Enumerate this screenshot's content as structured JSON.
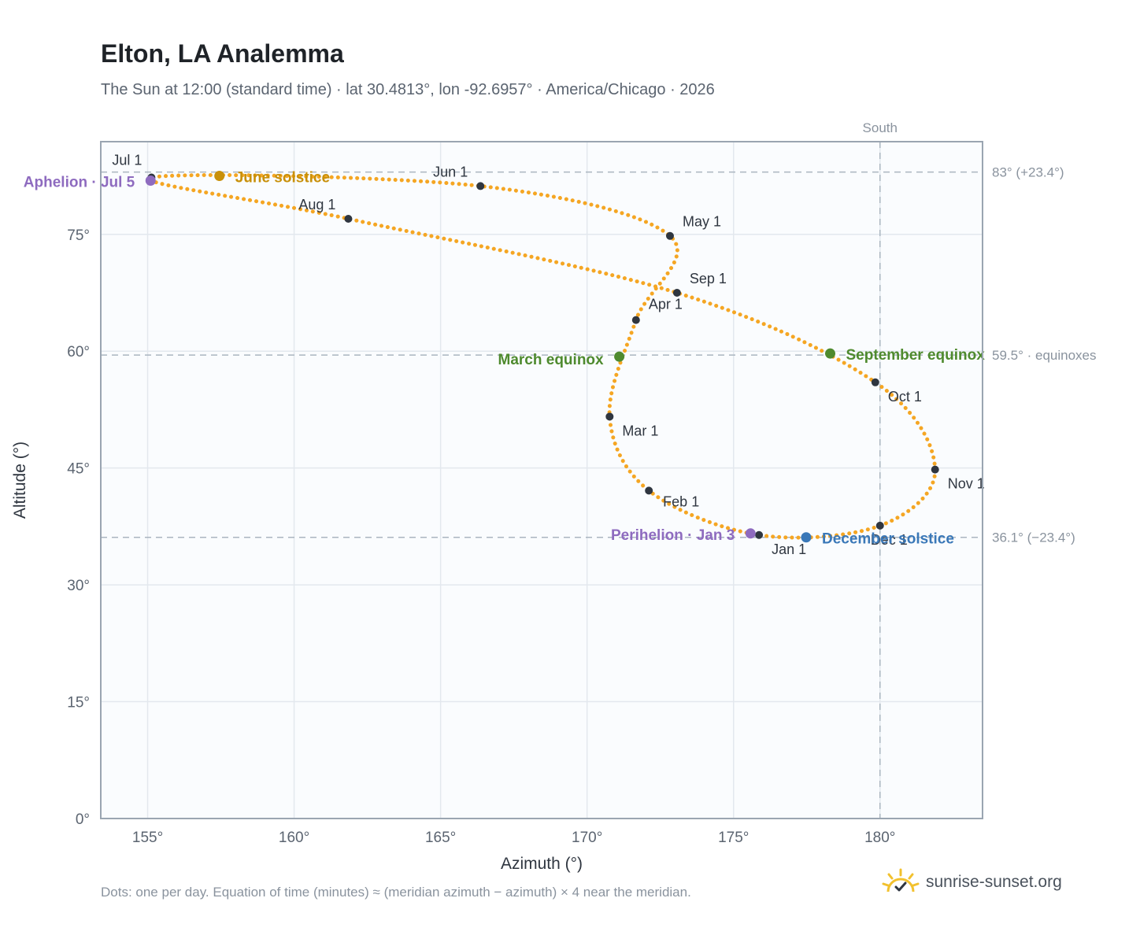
{
  "title": "Elton, LA Analemma",
  "subtitle": "The Sun at 12:00 (standard time) · lat 30.4813°, lon -92.6957° · America/Chicago · 2026",
  "footnote": "Dots: one per day. Equation of time (minutes) ≈ (meridian azimuth − azimuth) × 4 near the meridian.",
  "brand": {
    "name": "sunrise-sunset.org",
    "icon": "sun-logo-icon"
  },
  "colors": {
    "curve": "#f5a623",
    "month_dot": "#2f3640",
    "solstice_june": "#c8900a",
    "solstice_december": "#3a78b8",
    "equinox": "#4e8a2e",
    "apsis": "#8e6bbf",
    "grid": "#e3e8ee",
    "plot_bg": "#fafcfe",
    "axis": "#9aa5b1"
  },
  "chart_data": {
    "type": "scatter",
    "xlabel": "Azimuth (°)",
    "ylabel": "Altitude (°)",
    "xlim": [
      153.4,
      183.5
    ],
    "ylim": [
      0,
      86.9
    ],
    "xticks": [
      155,
      160,
      165,
      170,
      175,
      180
    ],
    "xtick_labels": [
      "155°",
      "160°",
      "165°",
      "170°",
      "175°",
      "180°"
    ],
    "yticks": [
      0,
      15,
      30,
      45,
      60,
      75
    ],
    "ytick_labels": [
      "0°",
      "15°",
      "30°",
      "45°",
      "60°",
      "75°"
    ],
    "grid": true,
    "meridian": {
      "azimuth": 180,
      "label": "South"
    },
    "reference_lines": [
      {
        "altitude": 83.0,
        "label": "83° (+23.4°)"
      },
      {
        "altitude": 59.5,
        "label": "59.5° · equinoxes"
      },
      {
        "altitude": 36.1,
        "label": "36.1° (−23.4°)"
      }
    ],
    "series": [
      {
        "points": [
          {
            "azimuth": 175.87,
            "altitude": 36.4
          },
          {
            "azimuth": 172.11,
            "altitude": 42.1
          },
          {
            "azimuth": 170.77,
            "altitude": 51.6
          },
          {
            "azimuth": 171.67,
            "altitude": 64.0
          },
          {
            "azimuth": 172.83,
            "altitude": 74.8
          },
          {
            "azimuth": 166.36,
            "altitude": 81.2
          },
          {
            "azimuth": 155.13,
            "altitude": 82.3
          },
          {
            "azimuth": 161.85,
            "altitude": 77.0
          },
          {
            "azimuth": 173.07,
            "altitude": 67.5
          },
          {
            "azimuth": 179.84,
            "altitude": 56.0
          },
          {
            "azimuth": 181.88,
            "altitude": 44.8
          },
          {
            "azimuth": 180.0,
            "altitude": 37.6
          },
          {
            "azimuth": 175.87,
            "altitude": 36.4
          }
        ]
      }
    ],
    "month_markers": [
      {
        "label": "Jan 1",
        "azimuth": 175.87,
        "altitude": 36.4
      },
      {
        "label": "Feb 1",
        "azimuth": 172.11,
        "altitude": 42.1
      },
      {
        "label": "Mar 1",
        "azimuth": 170.77,
        "altitude": 51.6
      },
      {
        "label": "Apr 1",
        "azimuth": 171.67,
        "altitude": 64.0
      },
      {
        "label": "May 1",
        "azimuth": 172.83,
        "altitude": 74.8
      },
      {
        "label": "Jun 1",
        "azimuth": 166.36,
        "altitude": 81.2
      },
      {
        "label": "Jul 1",
        "azimuth": 155.13,
        "altitude": 82.3
      },
      {
        "label": "Aug 1",
        "azimuth": 161.85,
        "altitude": 77.0
      },
      {
        "label": "Sep 1",
        "azimuth": 173.07,
        "altitude": 67.5
      },
      {
        "label": "Oct 1",
        "azimuth": 179.84,
        "altitude": 56.0
      },
      {
        "label": "Nov 1",
        "azimuth": 181.88,
        "altitude": 44.8
      },
      {
        "label": "Dec 1",
        "azimuth": 180.0,
        "altitude": 37.6
      }
    ],
    "events": [
      {
        "label": "June solstice",
        "azimuth": 157.45,
        "altitude": 82.5,
        "kind": "solstice_june"
      },
      {
        "label": "December solstice",
        "azimuth": 177.48,
        "altitude": 36.1,
        "kind": "solstice_december"
      },
      {
        "label": "March equinox",
        "azimuth": 171.1,
        "altitude": 59.3,
        "kind": "equinox"
      },
      {
        "label": "September equinox",
        "azimuth": 178.3,
        "altitude": 59.7,
        "kind": "equinox"
      },
      {
        "label": "Perihelion · Jan 3",
        "azimuth": 175.58,
        "altitude": 36.6,
        "kind": "apsis"
      },
      {
        "label": "Aphelion · Jul 5",
        "azimuth": 155.1,
        "altitude": 81.9,
        "kind": "apsis"
      }
    ]
  }
}
